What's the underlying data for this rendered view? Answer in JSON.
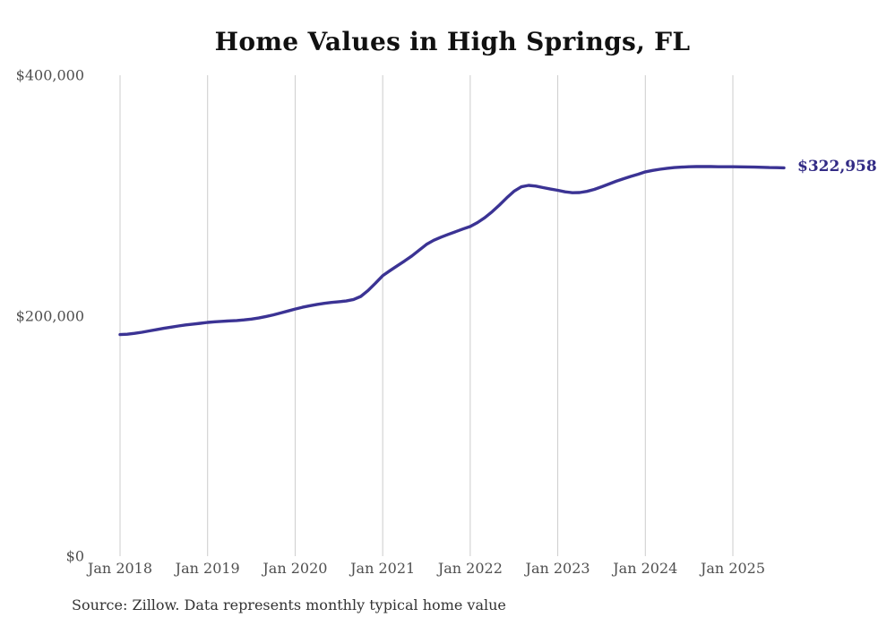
{
  "colors": {
    "line": "#3b3394",
    "end_label_text": "#322b85",
    "grid": "#cccccc",
    "tick_text": "#4f4f4f",
    "title_text": "#111111",
    "source_text": "#333333",
    "background": "#ffffff"
  },
  "source_note": "Source: Zillow. Data represents monthly typical home value",
  "chart_data": {
    "type": "line",
    "title": "Home Values in High Springs, FL",
    "xlabel": "",
    "ylabel": "",
    "ylim": [
      0,
      400000
    ],
    "grid": "vertical-only",
    "legend": "none",
    "end_label": "$322,958",
    "final_value": 322958,
    "x_start": "Jan 2018",
    "x_end": "Aug 2025",
    "x_interval": "monthly",
    "y_ticks": [
      {
        "label": "$0",
        "value": 0
      },
      {
        "label": "$200,000",
        "value": 200000
      },
      {
        "label": "$400,000",
        "value": 400000
      }
    ],
    "x_ticks": [
      {
        "label": "Jan 2018",
        "month_index": 0
      },
      {
        "label": "Jan 2019",
        "month_index": 12
      },
      {
        "label": "Jan 2020",
        "month_index": 24
      },
      {
        "label": "Jan 2021",
        "month_index": 36
      },
      {
        "label": "Jan 2022",
        "month_index": 48
      },
      {
        "label": "Jan 2023",
        "month_index": 60
      },
      {
        "label": "Jan 2024",
        "month_index": 72
      },
      {
        "label": "Jan 2025",
        "month_index": 84
      }
    ],
    "x_months": [
      "Jan 2018",
      "Feb 2018",
      "Mar 2018",
      "Apr 2018",
      "May 2018",
      "Jun 2018",
      "Jul 2018",
      "Aug 2018",
      "Sep 2018",
      "Oct 2018",
      "Nov 2018",
      "Dec 2018",
      "Jan 2019",
      "Feb 2019",
      "Mar 2019",
      "Apr 2019",
      "May 2019",
      "Jun 2019",
      "Jul 2019",
      "Aug 2019",
      "Sep 2019",
      "Oct 2019",
      "Nov 2019",
      "Dec 2019",
      "Jan 2020",
      "Feb 2020",
      "Mar 2020",
      "Apr 2020",
      "May 2020",
      "Jun 2020",
      "Jul 2020",
      "Aug 2020",
      "Sep 2020",
      "Oct 2020",
      "Nov 2020",
      "Dec 2020",
      "Jan 2021",
      "Feb 2021",
      "Mar 2021",
      "Apr 2021",
      "May 2021",
      "Jun 2021",
      "Jul 2021",
      "Aug 2021",
      "Sep 2021",
      "Oct 2021",
      "Nov 2021",
      "Dec 2021",
      "Jan 2022",
      "Feb 2022",
      "Mar 2022",
      "Apr 2022",
      "May 2022",
      "Jun 2022",
      "Jul 2022",
      "Aug 2022",
      "Sep 2022",
      "Oct 2022",
      "Nov 2022",
      "Dec 2022",
      "Jan 2023",
      "Feb 2023",
      "Mar 2023",
      "Apr 2023",
      "May 2023",
      "Jun 2023",
      "Jul 2023",
      "Aug 2023",
      "Sep 2023",
      "Oct 2023",
      "Nov 2023",
      "Dec 2023",
      "Jan 2024",
      "Feb 2024",
      "Mar 2024",
      "Apr 2024",
      "May 2024",
      "Jun 2024",
      "Jul 2024",
      "Aug 2024",
      "Sep 2024",
      "Oct 2024",
      "Nov 2024",
      "Dec 2024",
      "Jan 2025",
      "Feb 2025",
      "Mar 2025",
      "Apr 2025",
      "May 2025",
      "Jun 2025",
      "Jul 2025",
      "Aug 2025"
    ],
    "series": [
      {
        "name": "Typical home value",
        "values": [
          184300,
          184600,
          185300,
          186200,
          187300,
          188400,
          189500,
          190500,
          191400,
          192300,
          193000,
          193700,
          194400,
          194900,
          195300,
          195700,
          196000,
          196500,
          197200,
          198100,
          199300,
          200700,
          202200,
          203900,
          205500,
          207000,
          208300,
          209400,
          210300,
          211000,
          211600,
          212200,
          213500,
          216000,
          221000,
          227000,
          233200,
          237500,
          241500,
          245500,
          249700,
          254500,
          259300,
          262700,
          265300,
          267600,
          269900,
          272100,
          274200,
          277500,
          281500,
          286500,
          292000,
          298000,
          303500,
          307200,
          308400,
          307800,
          306500,
          305300,
          304300,
          303000,
          302300,
          302400,
          303400,
          305000,
          307200,
          309500,
          311800,
          313900,
          315800,
          317600,
          319600,
          320800,
          321800,
          322600,
          323200,
          323600,
          323900,
          324000,
          324000,
          324000,
          323900,
          323900,
          323900,
          323800,
          323700,
          323600,
          323400,
          323200,
          323100,
          322958
        ]
      }
    ]
  }
}
